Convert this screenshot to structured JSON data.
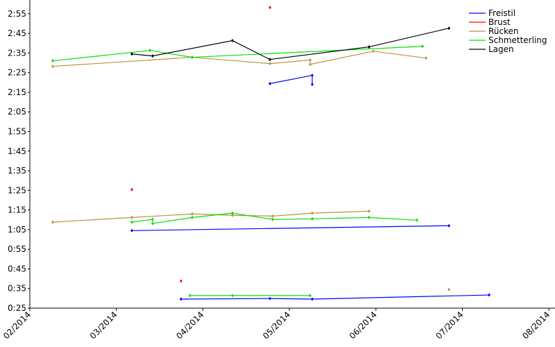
{
  "chart_data": {
    "type": "line",
    "xlim": [
      2,
      8.07
    ],
    "ylim": [
      25,
      182
    ],
    "xticks": [
      {
        "value": 2,
        "label": "02/2014"
      },
      {
        "value": 3,
        "label": "03/2014"
      },
      {
        "value": 4,
        "label": "04/2014"
      },
      {
        "value": 5,
        "label": "05/2014"
      },
      {
        "value": 6,
        "label": "06/2014"
      },
      {
        "value": 7,
        "label": "07/2014"
      },
      {
        "value": 8,
        "label": "08/2014"
      }
    ],
    "yticks": [
      {
        "value": 25,
        "label": "0:25"
      },
      {
        "value": 35,
        "label": "0:35"
      },
      {
        "value": 45,
        "label": "0:45"
      },
      {
        "value": 55,
        "label": "0:55"
      },
      {
        "value": 65,
        "label": "1:05"
      },
      {
        "value": 75,
        "label": "1:15"
      },
      {
        "value": 85,
        "label": "1:25"
      },
      {
        "value": 95,
        "label": "1:35"
      },
      {
        "value": 105,
        "label": "1:45"
      },
      {
        "value": 115,
        "label": "1:55"
      },
      {
        "value": 125,
        "label": "2:05"
      },
      {
        "value": 135,
        "label": "2:15"
      },
      {
        "value": 145,
        "label": "2:25"
      },
      {
        "value": 155,
        "label": "2:35"
      },
      {
        "value": 165,
        "label": "2:45"
      },
      {
        "value": 175,
        "label": "2:55"
      }
    ],
    "grid": false,
    "legend": "top-right",
    "series": [
      {
        "name": "Freistil",
        "color": "#0000ff",
        "x": [
          4.775,
          5.264,
          5.264,
          null,
          3.179,
          6.844,
          null,
          3.748,
          4.775,
          5.264,
          7.309
        ],
        "values": [
          139.4,
          143.6,
          139.0,
          null,
          64.5,
          67.0,
          null,
          29.6,
          29.9,
          29.6,
          31.7
        ]
      },
      {
        "name": "Brust",
        "color": "#ff0000",
        "x": [
          4.775,
          null,
          3.179,
          null,
          3.748
        ],
        "values": [
          178.2,
          null,
          85.4,
          null,
          38.8
        ]
      },
      {
        "name": "Rücken",
        "color": "#b8943c",
        "x": [
          2.265,
          3.877,
          4.775,
          5.24,
          5.24,
          5.97,
          6.579,
          null,
          2.265,
          3.179,
          3.877,
          4.342,
          4.807,
          5.264,
          5.921,
          null,
          6.844
        ],
        "values": [
          148.2,
          152.8,
          149.6,
          151.4,
          149.2,
          155.9,
          152.4,
          null,
          68.8,
          71.2,
          73.0,
          72.3,
          71.9,
          73.4,
          74.4,
          null,
          34.5
        ]
      },
      {
        "name": "Schmetterling",
        "color": "#00e000",
        "x": [
          2.265,
          3.387,
          3.877,
          6.539,
          null,
          3.179,
          3.419,
          3.419,
          3.877,
          4.342,
          4.807,
          5.264,
          5.921,
          6.475,
          null,
          3.852,
          4.342,
          5.24
        ],
        "values": [
          151.0,
          156.3,
          152.8,
          158.4,
          null,
          68.8,
          70.2,
          68.1,
          71.2,
          73.4,
          70.2,
          70.5,
          71.2,
          69.8,
          null,
          31.4,
          31.4,
          31.4
        ]
      },
      {
        "name": "Lagen",
        "color": "#000000",
        "x": [
          3.179,
          3.419,
          4.342,
          4.775,
          5.921,
          6.844
        ],
        "values": [
          154.5,
          153.5,
          161.3,
          151.7,
          158.1,
          167.6
        ]
      }
    ]
  }
}
